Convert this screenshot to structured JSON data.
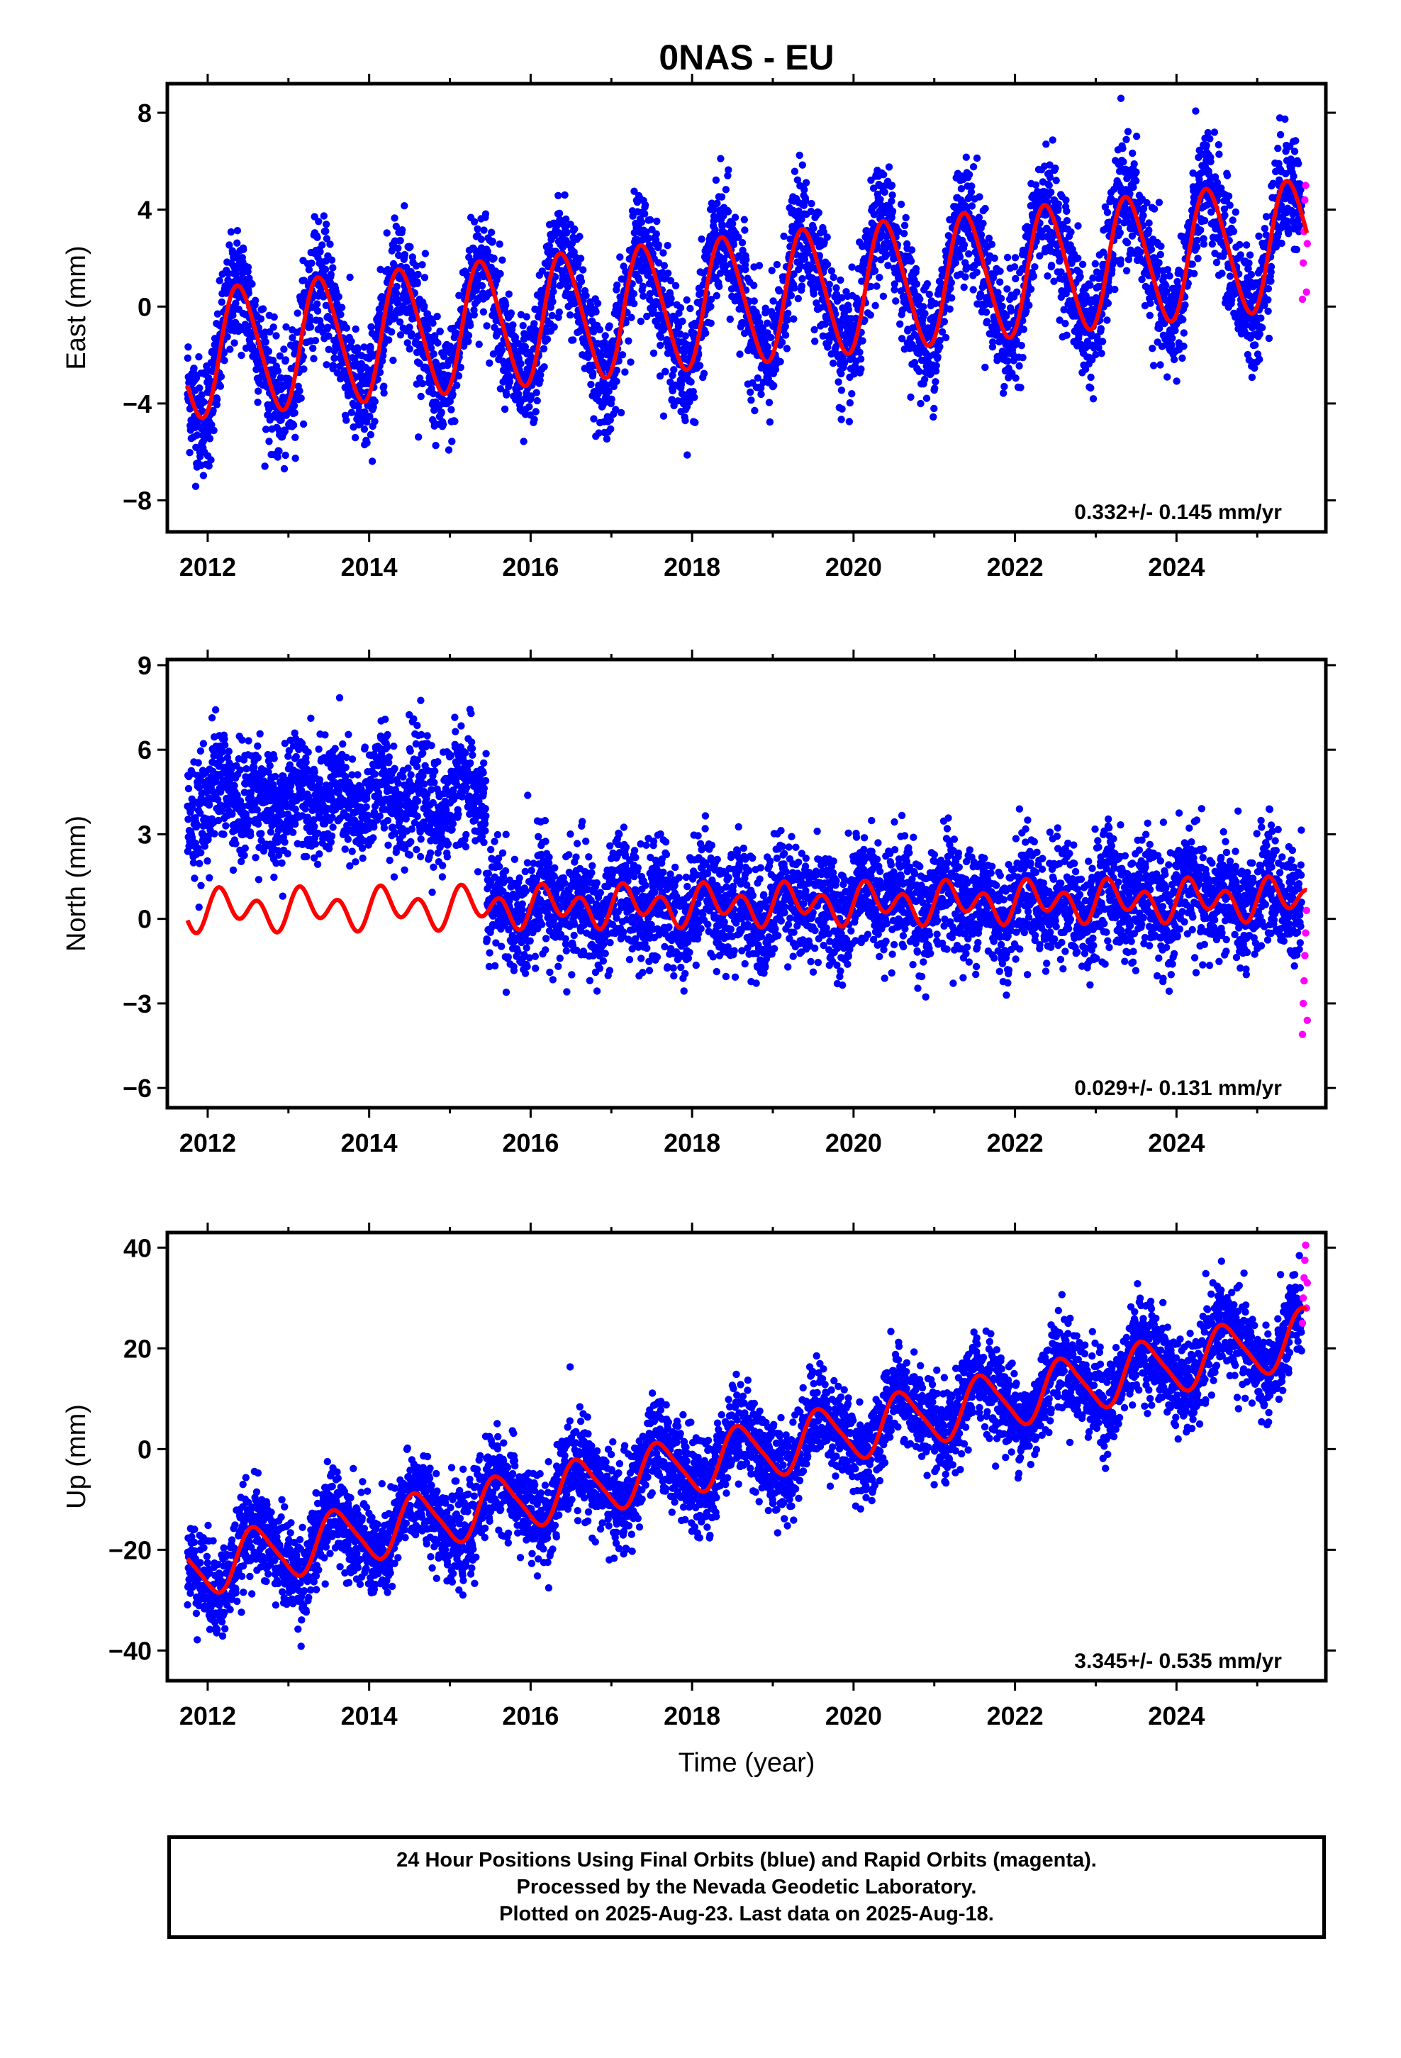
{
  "title": "0NAS - EU",
  "colors": {
    "final_orbits": "#0000ff",
    "rapid_orbits": "#ff00ff",
    "model": "#ff0000",
    "frame": "#000000"
  },
  "chart_data": [
    {
      "type": "scatter",
      "component": "east",
      "ylabel": "East (mm)",
      "xlabel": "",
      "xlim": [
        2011.5,
        2025.85
      ],
      "ylim": [
        -9.3,
        9.2
      ],
      "yticks": [
        -8,
        -4,
        0,
        4,
        8
      ],
      "xticks": [
        2012,
        2014,
        2016,
        2018,
        2020,
        2022,
        2024
      ],
      "grid": false,
      "rate_label": "0.332+/- 0.145 mm/yr",
      "model_trend": {
        "t0": 2011.75,
        "y0": -2.0,
        "slope": 0.332,
        "amplitude": 2.6,
        "phase": 0.15,
        "semi_amplitude": 0.3,
        "offsets": []
      },
      "scatter": 1.2,
      "rapid_points": [
        [
          2025.56,
          0.3
        ],
        [
          2025.57,
          1.8
        ],
        [
          2025.58,
          3.1
        ],
        [
          2025.59,
          4.4
        ],
        [
          2025.6,
          5.0
        ],
        [
          2025.61,
          0.6
        ],
        [
          2025.62,
          2.6
        ]
      ]
    },
    {
      "type": "scatter",
      "component": "north",
      "ylabel": "North (mm)",
      "xlabel": "",
      "xlim": [
        2011.5,
        2025.85
      ],
      "ylim": [
        -6.7,
        9.2
      ],
      "yticks": [
        -6,
        -3,
        0,
        3,
        6,
        9
      ],
      "xticks": [
        2012,
        2014,
        2016,
        2018,
        2020,
        2022,
        2024
      ],
      "grid": false,
      "rate_label": "0.029+/- 0.131 mm/yr",
      "model_trend": {
        "t0": 2011.75,
        "y0": 0.3,
        "slope": 0.029,
        "amplitude": 0.35,
        "phase": 0.0,
        "semi_amplitude": 0.55,
        "offsets": []
      },
      "data_offset": {
        "before": 2015.45,
        "value": 3.9
      },
      "scatter": 1.0,
      "rapid_points": [
        [
          2025.56,
          -4.1
        ],
        [
          2025.57,
          -3.0
        ],
        [
          2025.58,
          -2.2
        ],
        [
          2025.59,
          -1.3
        ],
        [
          2025.6,
          -0.5
        ],
        [
          2025.61,
          0.3
        ],
        [
          2025.62,
          -3.6
        ]
      ]
    },
    {
      "type": "scatter",
      "component": "up",
      "ylabel": "Up (mm)",
      "xlabel": "Time (year)",
      "xlim": [
        2011.5,
        2025.85
      ],
      "ylim": [
        -46,
        43
      ],
      "yticks": [
        -40,
        -20,
        0,
        20,
        40
      ],
      "xticks": [
        2012,
        2014,
        2016,
        2018,
        2020,
        2022,
        2024
      ],
      "grid": false,
      "rate_label": "3.345+/- 0.535 mm/yr",
      "model_trend": {
        "t0": 2011.75,
        "y0": -24.0,
        "slope": 3.345,
        "amplitude": 5.5,
        "phase": 0.35,
        "semi_amplitude": 1.0,
        "offsets": []
      },
      "scatter": 4.5,
      "rapid_points": [
        [
          2025.56,
          25.0
        ],
        [
          2025.57,
          30.0
        ],
        [
          2025.58,
          34.0
        ],
        [
          2025.59,
          37.5
        ],
        [
          2025.6,
          40.5
        ],
        [
          2025.61,
          28.0
        ],
        [
          2025.62,
          33.0
        ]
      ]
    }
  ],
  "footer": {
    "line1": "24 Hour Positions Using Final Orbits (blue) and Rapid Orbits (magenta).",
    "line2": "Processed by the Nevada Geodetic Laboratory.",
    "line3": "Plotted on 2025-Aug-23. Last data on 2025-Aug-18."
  }
}
